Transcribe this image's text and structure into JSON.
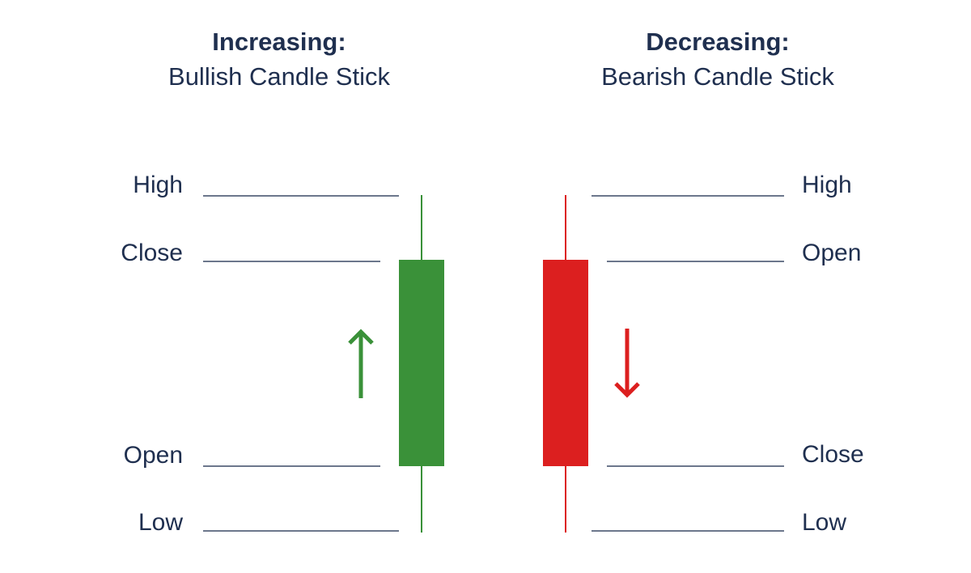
{
  "colors": {
    "text": "#1f2f4f",
    "guide_line": "#3c4a66",
    "bullish": "#3a9139",
    "bearish": "#dc1f1f"
  },
  "bullish": {
    "heading": "Increasing:",
    "subheading": "Bullish Candle Stick",
    "direction_icon": "arrow-up-icon",
    "levels": {
      "top": "High",
      "upper": "Close",
      "lower": "Open",
      "bottom": "Low"
    }
  },
  "bearish": {
    "heading": "Decreasing:",
    "subheading": "Bearish Candle Stick",
    "direction_icon": "arrow-down-icon",
    "levels": {
      "top": "High",
      "upper": "Open",
      "lower": "Close",
      "bottom": "Low"
    }
  }
}
